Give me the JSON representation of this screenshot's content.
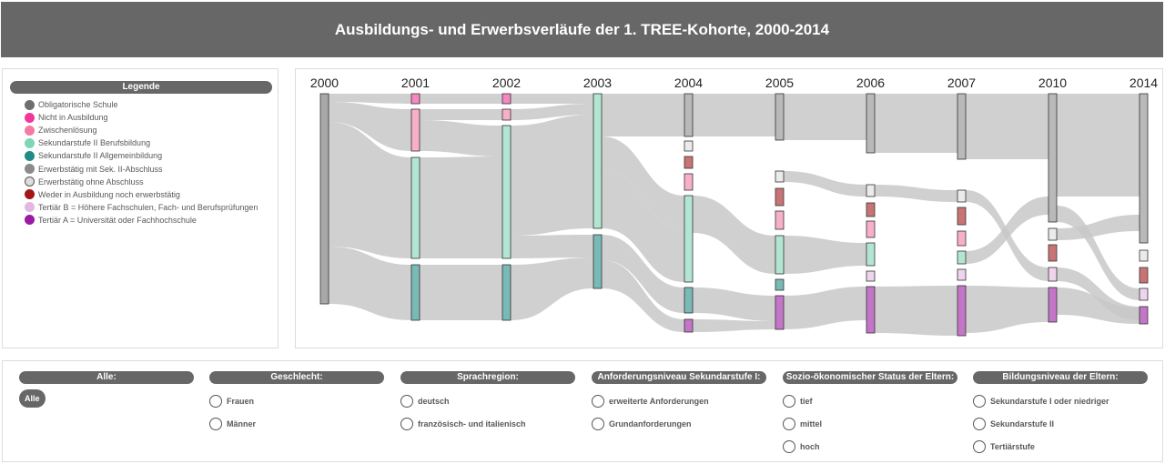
{
  "header": {
    "title": "Ausbildungs- und Erwerbsverläufe der 1. TREE-Kohorte, 2000-2014"
  },
  "legend": {
    "title": "Legende",
    "items": [
      {
        "label": "Obligatorische Schule",
        "color": "#6e6e6e"
      },
      {
        "label": "Nicht in Ausbildung",
        "color": "#f0379b"
      },
      {
        "label": "Zwischenlösung",
        "color": "#f47aa6"
      },
      {
        "label": "Sekundarstufe II Berufsbildung",
        "color": "#7fd6b4"
      },
      {
        "label": "Sekundarstufe II Allgemeinbildung",
        "color": "#208a86"
      },
      {
        "label": "Erwerbstätig mit Sek. II-Abschluss",
        "color": "#8b8b8b"
      },
      {
        "label": "Erwerbstätig ohne Abschluss",
        "color": "#dddddd"
      },
      {
        "label": "Weder in Ausbildung noch erwerbstätig",
        "color": "#a31717"
      },
      {
        "label": "Tertiär B = Höhere Fachschulen, Fach- und Berufsprüfungen",
        "color": "#e2b8e0"
      },
      {
        "label": "Tertiär A = Universität oder Fachhochschule",
        "color": "#9b1aa3"
      }
    ]
  },
  "chart_data": {
    "type": "sankey",
    "x": [
      "2000",
      "2001",
      "2002",
      "2003",
      "2004",
      "2005",
      "2006",
      "2007",
      "2010",
      "2014"
    ],
    "nodes": [
      {
        "year": "2000",
        "states": [
          "Obligatorische Schule"
        ]
      },
      {
        "year": "2001",
        "states": [
          "Nicht in Ausbildung",
          "Zwischenlösung",
          "Sekundarstufe II Berufsbildung",
          "Sekundarstufe II Allgemeinbildung"
        ]
      },
      {
        "year": "2002",
        "states": [
          "Nicht in Ausbildung",
          "Zwischenlösung",
          "Sekundarstufe II Berufsbildung",
          "Sekundarstufe II Allgemeinbildung"
        ]
      },
      {
        "year": "2003",
        "states": [
          "Sekundarstufe II Berufsbildung",
          "Sekundarstufe II Allgemeinbildung"
        ]
      },
      {
        "year": "2004",
        "states": [
          "Erwerbstätig mit Sek. II-Abschluss",
          "Erwerbstätig ohne Abschluss",
          "Weder in Ausbildung noch erwerbstätig",
          "Zwischenlösung",
          "Sekundarstufe II Berufsbildung",
          "Sekundarstufe II Allgemeinbildung",
          "Tertiär A = Universität oder Fachhochschule"
        ]
      },
      {
        "year": "2005",
        "states": [
          "Erwerbstätig mit Sek. II-Abschluss",
          "Erwerbstätig ohne Abschluss",
          "Weder in Ausbildung noch erwerbstätig",
          "Zwischenlösung",
          "Sekundarstufe II Berufsbildung",
          "Sekundarstufe II Allgemeinbildung",
          "Tertiär A = Universität oder Fachhochschule"
        ]
      },
      {
        "year": "2006",
        "states": [
          "Erwerbstätig mit Sek. II-Abschluss",
          "Erwerbstätig ohne Abschluss",
          "Weder in Ausbildung noch erwerbstätig",
          "Zwischenlösung",
          "Sekundarstufe II Berufsbildung",
          "Tertiär B = Höhere Fachschulen, Fach- und Berufsprüfungen",
          "Tertiär A = Universität oder Fachhochschule"
        ]
      },
      {
        "year": "2007",
        "states": [
          "Erwerbstätig mit Sek. II-Abschluss",
          "Erwerbstätig ohne Abschluss",
          "Weder in Ausbildung noch erwerbstätig",
          "Zwischenlösung",
          "Sekundarstufe II Berufsbildung",
          "Tertiär B = Höhere Fachschulen, Fach- und Berufsprüfungen",
          "Tertiär A = Universität oder Fachhochschule"
        ]
      },
      {
        "year": "2010",
        "states": [
          "Erwerbstätig mit Sek. II-Abschluss",
          "Erwerbstätig ohne Abschluss",
          "Weder in Ausbildung noch erwerbstätig",
          "Tertiär B = Höhere Fachschulen, Fach- und Berufsprüfungen",
          "Tertiär A = Universität oder Fachhochschule"
        ]
      },
      {
        "year": "2014",
        "states": [
          "Erwerbstätig mit Sek. II-Abschluss",
          "Erwerbstätig ohne Abschluss",
          "Weder in Ausbildung noch erwerbstätig",
          "Tertiär B = Höhere Fachschulen, Fach- und Berufsprüfungen",
          "Tertiär A = Universität oder Fachhochschule"
        ]
      }
    ],
    "link_color": "#c8c8c8"
  },
  "filters": [
    {
      "title": "Alle:",
      "selected": "Alle",
      "options": []
    },
    {
      "title": "Geschlecht:",
      "options": [
        "Frauen",
        "Männer"
      ]
    },
    {
      "title": "Sprachregion:",
      "options": [
        "deutsch",
        "französisch- und italienisch"
      ]
    },
    {
      "title": "Anforderungsniveau Sekundarstufe I:",
      "options": [
        "erweiterte Anforderungen",
        "Grundanforderungen"
      ]
    },
    {
      "title": "Sozio-ökonomischer Status der Eltern:",
      "options": [
        "tief",
        "mittel",
        "hoch"
      ]
    },
    {
      "title": "Bildungsniveau der Eltern:",
      "options": [
        "Sekundarstufe I oder niedriger",
        "Sekundarstufe II",
        "Tertiärstufe"
      ]
    }
  ]
}
